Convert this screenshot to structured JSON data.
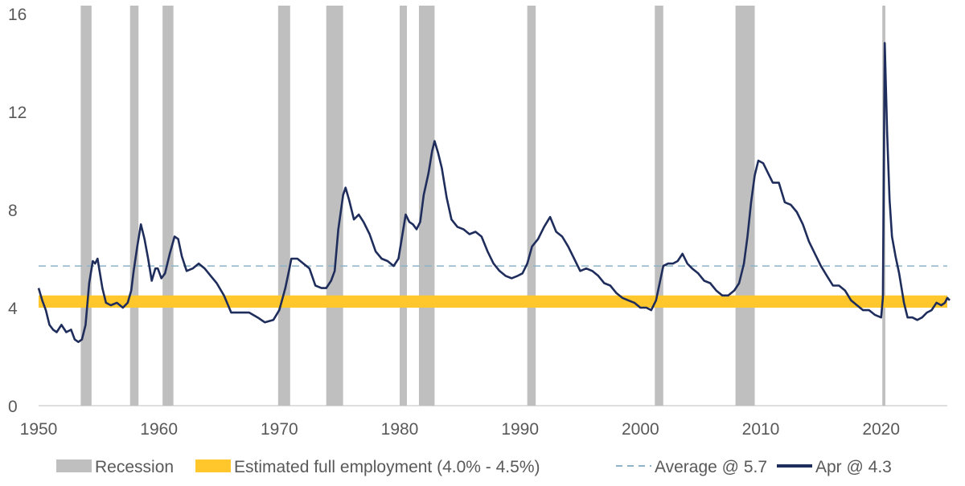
{
  "chart_data": {
    "type": "line",
    "title": "",
    "xlabel": "",
    "ylabel": "",
    "xlim": [
      1950,
      2025.5
    ],
    "ylim": [
      0,
      16
    ],
    "x_ticks": [
      "1950",
      "1960",
      "1970",
      "1980",
      "1990",
      "2000",
      "2010",
      "2020"
    ],
    "y_ticks": [
      "0",
      "4",
      "8",
      "12",
      "16"
    ],
    "grid": false,
    "legend_position": "bottom",
    "colors": {
      "recession": "#bfbfbf",
      "full_employment": "#ffc72c",
      "average": "#8db3c7",
      "series": "#1f2d5c"
    },
    "legend": {
      "recession": "Recession",
      "full_employment": "Estimated full employment (4.0% - 4.5%)",
      "average": "Average @ 5.7",
      "series": "Apr @ 4.3"
    },
    "recessions": [
      [
        1953.5,
        1954.4
      ],
      [
        1957.6,
        1958.3
      ],
      [
        1960.3,
        1961.2
      ],
      [
        1969.9,
        1970.9
      ],
      [
        1973.9,
        1975.3
      ],
      [
        1980.0,
        1980.6
      ],
      [
        1981.6,
        1982.9
      ],
      [
        1990.6,
        1991.3
      ],
      [
        2001.2,
        2001.9
      ],
      [
        2007.9,
        2009.5
      ],
      [
        2020.1,
        2020.35
      ]
    ],
    "full_employment_band": [
      4.0,
      4.5
    ],
    "average": 5.7,
    "series": [
      {
        "name": "Apr @ 4.3",
        "points": [
          [
            1950.0,
            4.8
          ],
          [
            1950.3,
            4.3
          ],
          [
            1950.6,
            3.9
          ],
          [
            1950.9,
            3.3
          ],
          [
            1951.2,
            3.1
          ],
          [
            1951.5,
            3.0
          ],
          [
            1951.9,
            3.3
          ],
          [
            1952.3,
            3.0
          ],
          [
            1952.7,
            3.1
          ],
          [
            1953.0,
            2.7
          ],
          [
            1953.3,
            2.6
          ],
          [
            1953.6,
            2.7
          ],
          [
            1953.9,
            3.3
          ],
          [
            1954.2,
            5.0
          ],
          [
            1954.5,
            5.9
          ],
          [
            1954.7,
            5.8
          ],
          [
            1954.9,
            6.0
          ],
          [
            1955.3,
            4.8
          ],
          [
            1955.6,
            4.2
          ],
          [
            1956.0,
            4.1
          ],
          [
            1956.5,
            4.2
          ],
          [
            1957.0,
            4.0
          ],
          [
            1957.4,
            4.2
          ],
          [
            1957.7,
            4.7
          ],
          [
            1957.9,
            5.5
          ],
          [
            1958.2,
            6.5
          ],
          [
            1958.5,
            7.4
          ],
          [
            1958.8,
            6.8
          ],
          [
            1959.1,
            6.0
          ],
          [
            1959.4,
            5.1
          ],
          [
            1959.7,
            5.6
          ],
          [
            1959.9,
            5.6
          ],
          [
            1960.2,
            5.2
          ],
          [
            1960.5,
            5.4
          ],
          [
            1960.9,
            6.2
          ],
          [
            1961.3,
            6.9
          ],
          [
            1961.6,
            6.8
          ],
          [
            1961.9,
            6.1
          ],
          [
            1962.3,
            5.5
          ],
          [
            1962.8,
            5.6
          ],
          [
            1963.3,
            5.8
          ],
          [
            1963.8,
            5.6
          ],
          [
            1964.3,
            5.3
          ],
          [
            1964.8,
            5.0
          ],
          [
            1965.4,
            4.5
          ],
          [
            1966.0,
            3.8
          ],
          [
            1966.8,
            3.8
          ],
          [
            1967.5,
            3.8
          ],
          [
            1968.2,
            3.6
          ],
          [
            1968.8,
            3.4
          ],
          [
            1969.5,
            3.5
          ],
          [
            1970.0,
            3.9
          ],
          [
            1970.5,
            4.8
          ],
          [
            1970.8,
            5.5
          ],
          [
            1971.0,
            6.0
          ],
          [
            1971.5,
            6.0
          ],
          [
            1972.0,
            5.8
          ],
          [
            1972.5,
            5.6
          ],
          [
            1973.0,
            4.9
          ],
          [
            1973.5,
            4.8
          ],
          [
            1973.9,
            4.8
          ],
          [
            1974.3,
            5.1
          ],
          [
            1974.6,
            5.5
          ],
          [
            1974.9,
            7.2
          ],
          [
            1975.3,
            8.6
          ],
          [
            1975.5,
            8.9
          ],
          [
            1975.8,
            8.4
          ],
          [
            1976.2,
            7.6
          ],
          [
            1976.6,
            7.8
          ],
          [
            1977.0,
            7.5
          ],
          [
            1977.5,
            7.0
          ],
          [
            1978.0,
            6.3
          ],
          [
            1978.5,
            6.0
          ],
          [
            1979.0,
            5.9
          ],
          [
            1979.5,
            5.7
          ],
          [
            1979.9,
            6.0
          ],
          [
            1980.2,
            6.9
          ],
          [
            1980.5,
            7.8
          ],
          [
            1980.8,
            7.5
          ],
          [
            1981.1,
            7.4
          ],
          [
            1981.4,
            7.2
          ],
          [
            1981.7,
            7.5
          ],
          [
            1982.0,
            8.6
          ],
          [
            1982.4,
            9.5
          ],
          [
            1982.7,
            10.4
          ],
          [
            1982.9,
            10.8
          ],
          [
            1983.2,
            10.3
          ],
          [
            1983.5,
            9.7
          ],
          [
            1983.9,
            8.5
          ],
          [
            1984.3,
            7.6
          ],
          [
            1984.8,
            7.3
          ],
          [
            1985.3,
            7.2
          ],
          [
            1985.8,
            7.0
          ],
          [
            1986.3,
            7.1
          ],
          [
            1986.8,
            6.9
          ],
          [
            1987.3,
            6.3
          ],
          [
            1987.8,
            5.8
          ],
          [
            1988.3,
            5.5
          ],
          [
            1988.8,
            5.3
          ],
          [
            1989.3,
            5.2
          ],
          [
            1989.8,
            5.3
          ],
          [
            1990.2,
            5.4
          ],
          [
            1990.6,
            5.8
          ],
          [
            1991.0,
            6.5
          ],
          [
            1991.5,
            6.8
          ],
          [
            1992.0,
            7.3
          ],
          [
            1992.5,
            7.7
          ],
          [
            1993.0,
            7.1
          ],
          [
            1993.5,
            6.9
          ],
          [
            1994.0,
            6.5
          ],
          [
            1994.5,
            6.0
          ],
          [
            1995.0,
            5.5
          ],
          [
            1995.5,
            5.6
          ],
          [
            1996.0,
            5.5
          ],
          [
            1996.5,
            5.3
          ],
          [
            1997.0,
            5.0
          ],
          [
            1997.5,
            4.9
          ],
          [
            1998.0,
            4.6
          ],
          [
            1998.5,
            4.4
          ],
          [
            1999.0,
            4.3
          ],
          [
            1999.5,
            4.2
          ],
          [
            2000.0,
            4.0
          ],
          [
            2000.5,
            4.0
          ],
          [
            2000.9,
            3.9
          ],
          [
            2001.3,
            4.3
          ],
          [
            2001.6,
            5.0
          ],
          [
            2001.9,
            5.7
          ],
          [
            2002.3,
            5.8
          ],
          [
            2002.7,
            5.8
          ],
          [
            2003.1,
            5.9
          ],
          [
            2003.5,
            6.2
          ],
          [
            2003.9,
            5.8
          ],
          [
            2004.3,
            5.6
          ],
          [
            2004.8,
            5.4
          ],
          [
            2005.3,
            5.1
          ],
          [
            2005.8,
            5.0
          ],
          [
            2006.3,
            4.7
          ],
          [
            2006.8,
            4.5
          ],
          [
            2007.3,
            4.5
          ],
          [
            2007.8,
            4.7
          ],
          [
            2008.2,
            5.0
          ],
          [
            2008.6,
            5.8
          ],
          [
            2008.9,
            6.9
          ],
          [
            2009.2,
            8.3
          ],
          [
            2009.5,
            9.4
          ],
          [
            2009.8,
            10.0
          ],
          [
            2010.2,
            9.9
          ],
          [
            2010.6,
            9.5
          ],
          [
            2011.0,
            9.1
          ],
          [
            2011.5,
            9.1
          ],
          [
            2012.0,
            8.3
          ],
          [
            2012.5,
            8.2
          ],
          [
            2013.0,
            7.9
          ],
          [
            2013.5,
            7.4
          ],
          [
            2014.0,
            6.7
          ],
          [
            2014.5,
            6.2
          ],
          [
            2015.0,
            5.7
          ],
          [
            2015.5,
            5.3
          ],
          [
            2016.0,
            4.9
          ],
          [
            2016.5,
            4.9
          ],
          [
            2017.0,
            4.7
          ],
          [
            2017.5,
            4.3
          ],
          [
            2018.0,
            4.1
          ],
          [
            2018.5,
            3.9
          ],
          [
            2019.0,
            3.9
          ],
          [
            2019.5,
            3.7
          ],
          [
            2020.0,
            3.6
          ],
          [
            2020.15,
            4.4
          ],
          [
            2020.3,
            14.8
          ],
          [
            2020.5,
            11.1
          ],
          [
            2020.7,
            8.4
          ],
          [
            2020.9,
            6.9
          ],
          [
            2021.2,
            6.1
          ],
          [
            2021.5,
            5.4
          ],
          [
            2021.9,
            4.2
          ],
          [
            2022.2,
            3.6
          ],
          [
            2022.6,
            3.6
          ],
          [
            2023.0,
            3.5
          ],
          [
            2023.4,
            3.6
          ],
          [
            2023.8,
            3.8
          ],
          [
            2024.2,
            3.9
          ],
          [
            2024.6,
            4.2
          ],
          [
            2025.0,
            4.1
          ],
          [
            2025.3,
            4.2
          ],
          [
            2025.5,
            4.4
          ],
          [
            2025.7,
            4.3
          ]
        ]
      }
    ]
  }
}
